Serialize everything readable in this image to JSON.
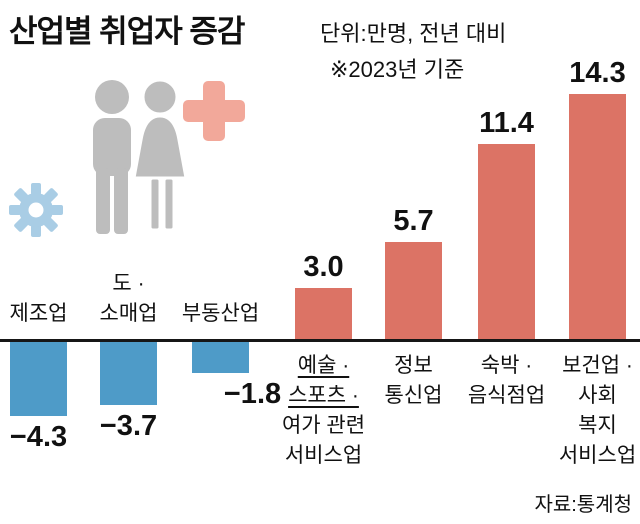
{
  "header": {
    "title": "산업별 취업자 증감",
    "unit_note": "단위:만명, 전년 대비",
    "basis_note": "※2023년 기준"
  },
  "source_note": "자료:통계청",
  "colors": {
    "positive_bar": "#DC7365",
    "negative_bar": "#4E9BC8",
    "plus_icon": "#F2A89A",
    "people_icon": "#BDBDBD",
    "gear_icon": "#A9CDE5",
    "baseline": "#161616",
    "text": "#111111"
  },
  "chart_data": {
    "type": "bar",
    "title": "산업별 취업자 증감",
    "unit": "만명",
    "comparison": "전년 대비",
    "basis": "2023년 기준",
    "source": "통계청",
    "ylim": [
      -5,
      15
    ],
    "grid": false,
    "legend": false,
    "categories": [
      "제조업",
      "도·소매업",
      "부동산업",
      "예술·스포츠·여가 관련 서비스업",
      "정보통신업",
      "숙박·음식점업",
      "보건업·사회복지 서비스업"
    ],
    "values": [
      -4.3,
      -3.7,
      -1.8,
      3.0,
      5.7,
      11.4,
      14.3
    ],
    "bars": [
      {
        "name": "manufacturing",
        "label_lines": [
          "제조업"
        ],
        "value": -4.3,
        "value_label": "−4.3"
      },
      {
        "name": "wholesale-retail",
        "label_lines": [
          "도 ·",
          "소매업"
        ],
        "value": -3.7,
        "value_label": "−3.7"
      },
      {
        "name": "real-estate",
        "label_lines": [
          "부동산업"
        ],
        "value": -1.8,
        "value_label": "−1.8"
      },
      {
        "name": "arts-sports-leisure-services",
        "label_lines": [
          "예술 ·",
          "스포츠 ·",
          "여가 관련",
          "서비스업"
        ],
        "underline_lines": [
          0,
          1
        ],
        "value": 3.0,
        "value_label": "3.0"
      },
      {
        "name": "information-communication",
        "label_lines": [
          "정보",
          "통신업"
        ],
        "value": 5.7,
        "value_label": "5.7"
      },
      {
        "name": "accommodation-food",
        "label_lines": [
          "숙박 ·",
          "음식점업"
        ],
        "value": 11.4,
        "value_label": "11.4"
      },
      {
        "name": "health-social-welfare-services",
        "label_lines": [
          "보건업 ·",
          "사회",
          "복지",
          "서비스업"
        ],
        "value": 14.3,
        "value_label": "14.3"
      }
    ]
  }
}
